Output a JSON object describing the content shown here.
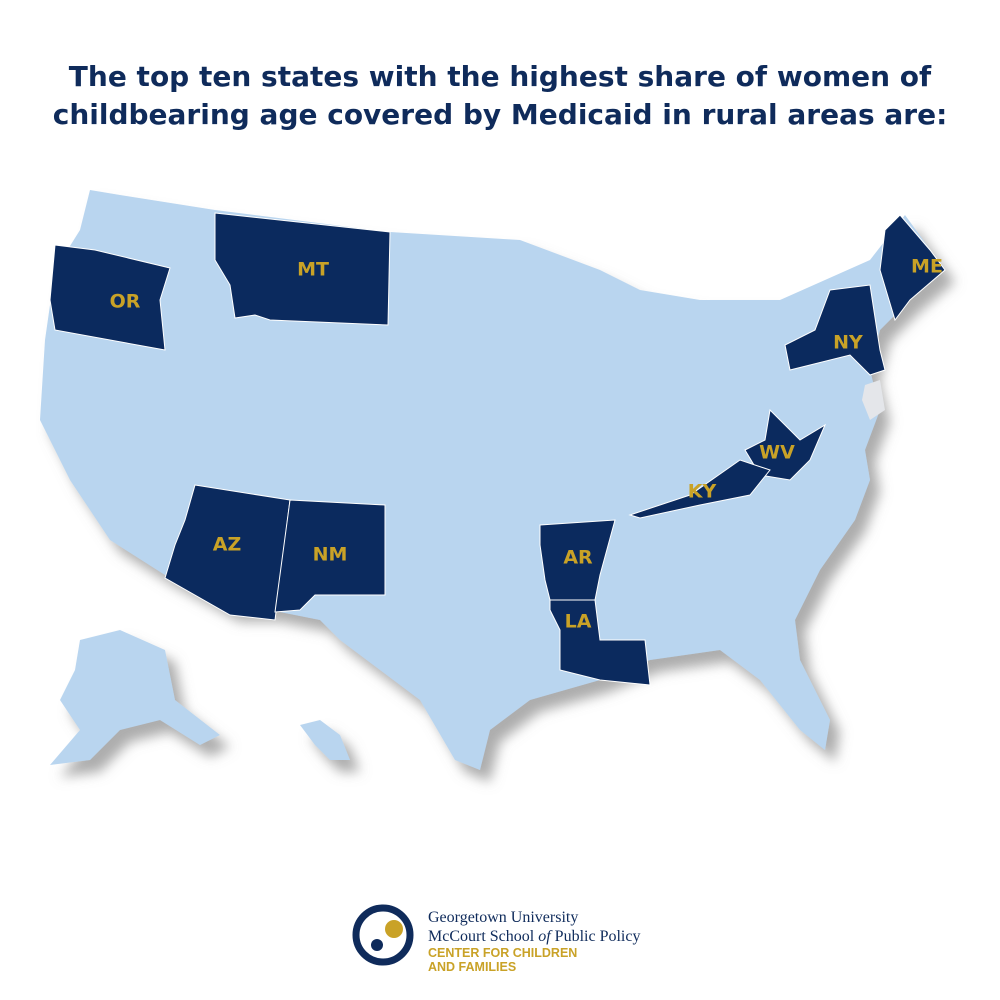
{
  "title": "The top ten states with the highest share of women of childbearing age covered by Medicaid in rural areas are:",
  "states": [
    "OR",
    "MT",
    "ME",
    "NY",
    "WV",
    "KY",
    "AZ",
    "NM",
    "AR",
    "LA"
  ],
  "logo": {
    "university": "Georgetown University",
    "school_a": "McCourt School ",
    "school_of": "of",
    "school_b": " Public Policy",
    "center_1": "CENTER FOR CHILDREN",
    "center_2": "AND FAMILIES"
  }
}
